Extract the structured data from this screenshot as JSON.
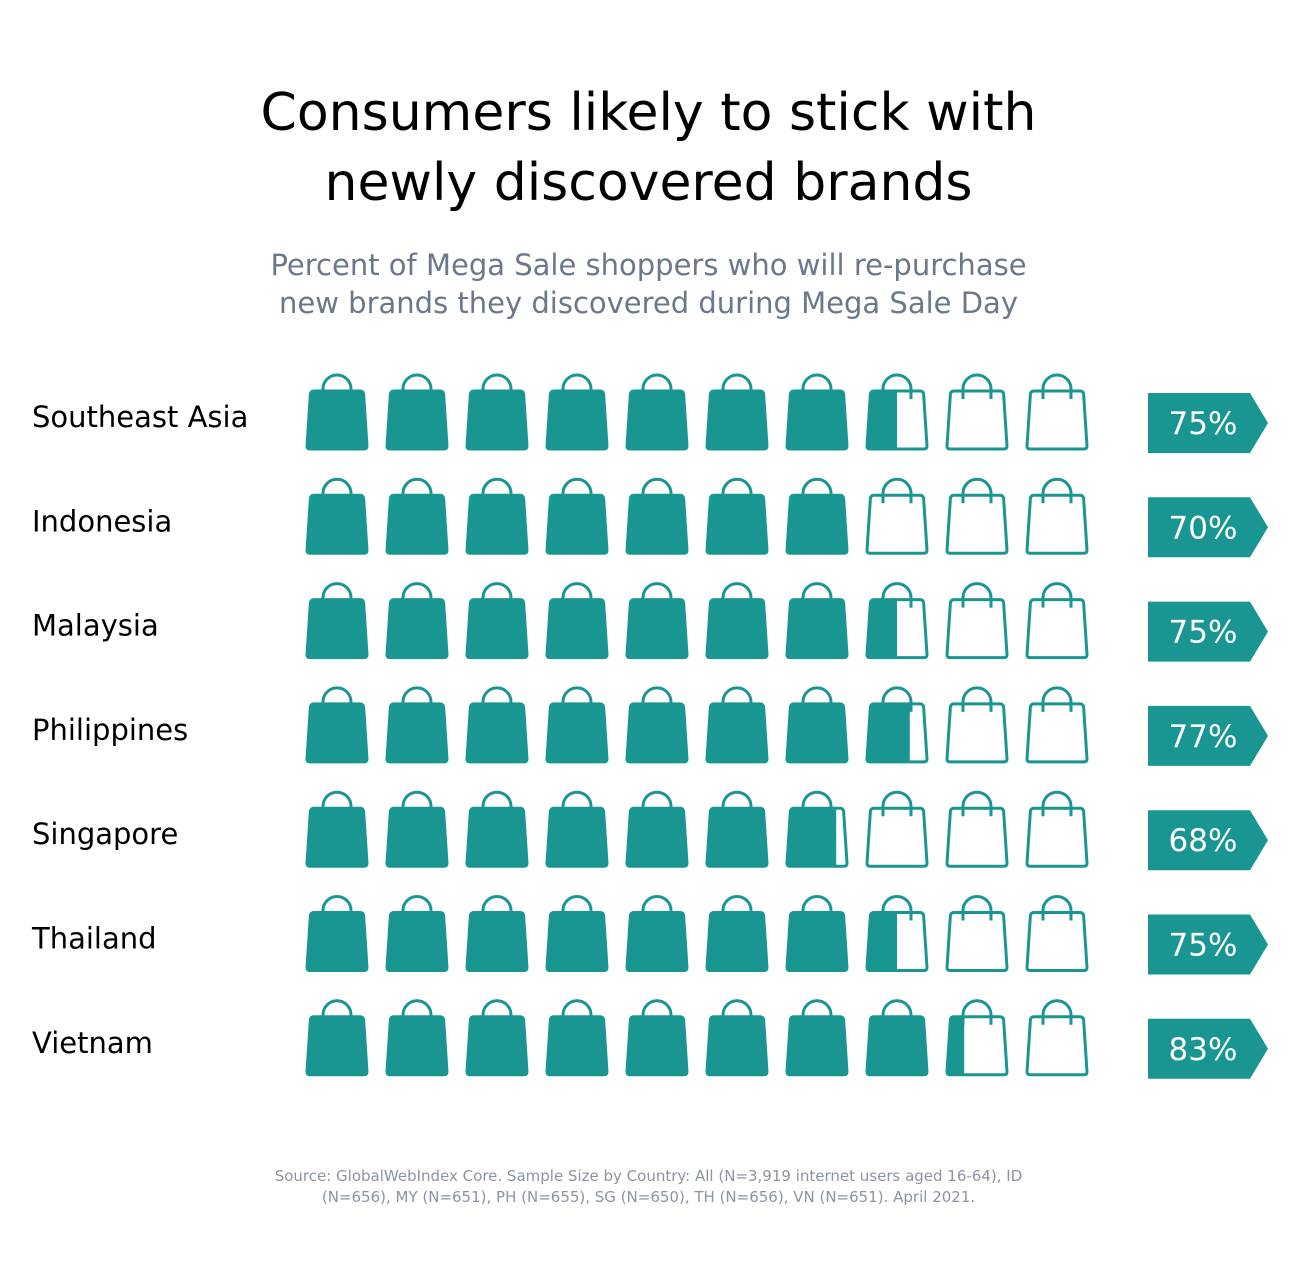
{
  "title_lines": [
    "Consumers likely to stick with",
    "newly discovered brands"
  ],
  "subtitle_lines": [
    "Percent of Mega Sale shoppers who will re-purchase",
    "new brands they discovered during Mega Sale Day"
  ],
  "source_lines": [
    "Source: GlobalWebIndex Core. Sample Size by Country: All (N=3,919 internet users aged 16-64), ID",
    "(N=656), MY (N=651), PH (N=655), SG (N=650), TH (N=656), VN (N=651). April 2021."
  ],
  "colors": {
    "teal": "#1a9692",
    "text": "#000000",
    "subtitle": "#6b7889",
    "label_text": "#ffffff"
  },
  "icon": "shopping-bag-icon",
  "chart_data": {
    "type": "pictogram",
    "icons_per_row": 10,
    "percent_per_icon": 10,
    "categories": [
      "Southeast Asia",
      "Indonesia",
      "Malaysia",
      "Philippines",
      "Singapore",
      "Thailand",
      "Vietnam"
    ],
    "values": [
      75,
      70,
      75,
      77,
      68,
      75,
      83
    ],
    "value_labels": [
      "75%",
      "70%",
      "75%",
      "77%",
      "68%",
      "75%",
      "83%"
    ],
    "title": "Consumers likely to stick with newly discovered brands",
    "subtitle": "Percent of Mega Sale shoppers who will re-purchase new brands they discovered during Mega Sale Day"
  }
}
